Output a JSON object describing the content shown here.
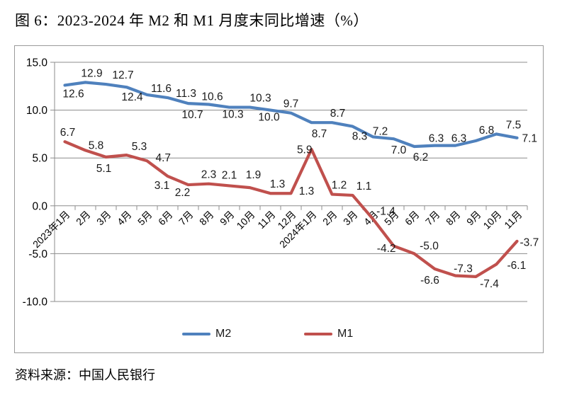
{
  "title": "图 6：2023-2024 年 M2 和 M1 月度末同比增速（%）",
  "source": "资料来源：中国人民银行",
  "colors": {
    "m2": "#4F81BD",
    "m1": "#C0504D",
    "grid": "#8C8C8C",
    "frame_border": "#9A9A9A",
    "label_text": "#1A1A1A",
    "axis_text": "#000000"
  },
  "chart_data": {
    "type": "line",
    "title": "图 6：2023-2024 年 M2 和 M1 月度末同比增速（%）",
    "xlabel": "",
    "ylabel": "",
    "ylim": [
      -10,
      15
    ],
    "yticks": [
      "15.0",
      "10.0",
      "5.0",
      "0.0",
      "-5.0",
      "-10.0"
    ],
    "grid": true,
    "legend_position": "bottom",
    "categories": [
      "2023年1月",
      "2月",
      "3月",
      "4月",
      "5月",
      "6月",
      "7月",
      "8月",
      "9月",
      "10月",
      "11月",
      "12月",
      "2024年1月",
      "2月",
      "3月",
      "4月",
      "5月",
      "6月",
      "7月",
      "8月",
      "9月",
      "10月",
      "11月"
    ],
    "series": [
      {
        "name": "M2",
        "color": "#4F81BD",
        "values": [
          12.6,
          12.9,
          12.7,
          12.4,
          11.6,
          11.3,
          10.7,
          10.6,
          10.3,
          10.3,
          10.0,
          9.7,
          8.7,
          8.7,
          8.3,
          7.2,
          7.0,
          6.2,
          6.3,
          6.3,
          6.8,
          7.5,
          7.1
        ],
        "label_pos": [
          "b",
          "a",
          "a",
          "b",
          "a",
          "a",
          "b",
          "a",
          "b",
          "a",
          "b",
          "a",
          "b",
          "a",
          "b",
          "a",
          "b",
          "b",
          "a",
          "a",
          "a",
          "a",
          "r"
        ],
        "label_dx": [
          12,
          9,
          24,
          8,
          20,
          26,
          6,
          5,
          5,
          15,
          -2,
          0,
          11,
          8,
          10,
          10,
          7,
          9,
          2,
          5,
          15,
          24,
          0
        ],
        "label_dy": [
          -2,
          0,
          0,
          0,
          4,
          7,
          2,
          2,
          -4,
          0,
          -4,
          0,
          2,
          0,
          0,
          5,
          2,
          1,
          3,
          3,
          -2,
          0,
          0
        ]
      },
      {
        "name": "M1",
        "color": "#C0504D",
        "values": [
          6.7,
          5.8,
          5.1,
          5.3,
          4.7,
          3.1,
          2.2,
          2.3,
          2.1,
          1.9,
          1.3,
          1.3,
          5.9,
          1.2,
          1.1,
          -1.4,
          -4.2,
          -5.0,
          -6.6,
          -7.3,
          -7.4,
          -6.1,
          -3.7
        ],
        "label_pos": [
          "a",
          "a",
          "b",
          "a",
          "r",
          "b",
          "b",
          "a",
          "a",
          "a",
          "a",
          "a",
          "l",
          "a",
          "a",
          "a",
          "l",
          "a",
          "b",
          "a",
          "b",
          "r",
          "r"
        ],
        "label_dx": [
          4,
          15,
          -3,
          18,
          5,
          -8,
          -8,
          0,
          0,
          5,
          10,
          22,
          7,
          10,
          16,
          18,
          9,
          21,
          -7,
          11,
          19,
          8,
          -3
        ],
        "label_dy": [
          0,
          6,
          2,
          1,
          -5,
          -1,
          -3,
          0,
          -2,
          -5,
          0,
          10,
          0,
          0,
          0,
          2,
          3,
          2,
          2,
          3,
          -4,
          1,
          1
        ]
      }
    ],
    "legend": [
      "M2",
      "M1"
    ]
  }
}
